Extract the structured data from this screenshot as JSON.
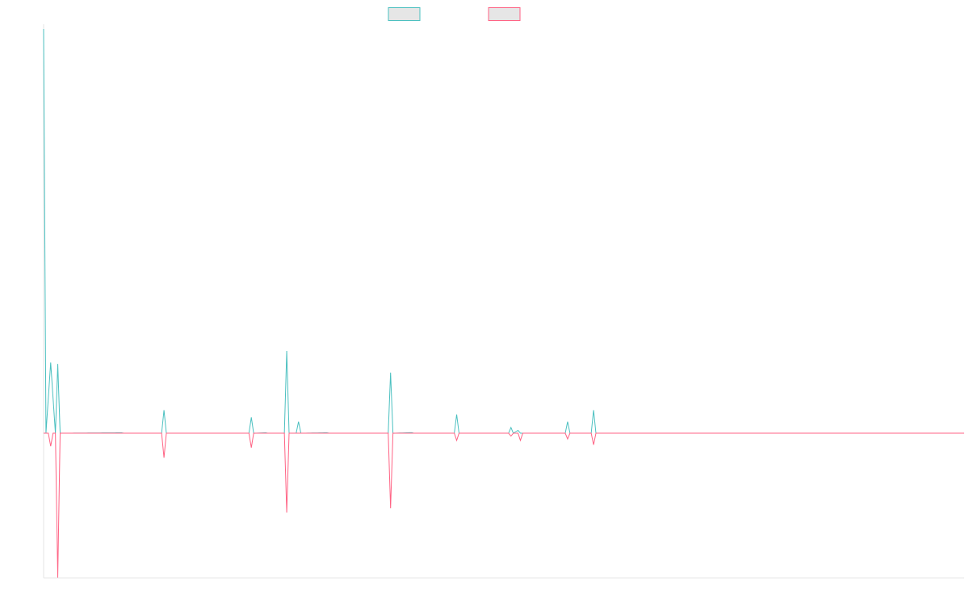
{
  "chart_data": {
    "type": "line",
    "title": "",
    "xlabel": "",
    "ylabel": "",
    "grid": false,
    "legend": "top-center",
    "x": [
      0,
      1,
      2,
      3,
      4,
      5,
      6,
      7,
      8,
      9,
      10,
      11,
      12,
      13,
      14,
      15,
      16,
      17,
      18,
      19,
      20,
      21,
      22,
      23,
      24,
      25,
      26,
      27,
      28,
      29,
      30,
      31,
      32,
      33,
      34,
      35,
      36,
      37,
      38,
      39,
      40,
      41,
      42,
      43,
      44,
      45,
      46,
      47,
      48,
      49,
      50,
      51,
      52,
      53,
      54,
      55,
      56,
      57,
      58,
      59,
      60,
      61,
      62,
      63,
      64,
      65,
      66,
      67,
      68,
      69,
      70,
      71,
      72,
      73,
      74,
      75,
      76,
      77,
      78,
      79,
      80,
      81,
      82,
      83,
      84,
      85,
      86,
      87,
      88,
      89,
      90,
      91,
      92,
      93,
      94,
      95,
      96,
      97,
      98,
      99,
      100,
      101,
      102,
      103,
      104,
      105,
      106,
      107,
      108,
      109,
      110,
      111,
      112,
      113,
      114,
      115,
      116,
      117,
      118,
      119,
      120,
      121,
      122,
      123,
      124,
      125,
      126,
      127,
      128,
      129,
      130,
      131,
      132,
      133,
      134,
      135,
      136,
      137,
      138,
      139,
      140,
      141,
      142,
      143,
      144,
      145,
      146,
      147,
      148,
      149,
      150,
      151,
      152,
      153,
      154,
      155,
      156,
      157,
      158,
      159,
      160,
      161,
      162,
      163,
      164,
      165,
      166,
      167,
      168,
      169,
      170,
      171,
      172,
      173,
      174,
      175,
      176,
      177,
      178,
      179,
      180,
      181,
      182,
      183,
      184,
      185,
      186,
      187,
      188,
      189,
      190,
      191,
      192,
      193,
      194,
      195,
      196,
      197,
      198,
      199,
      200,
      201,
      202,
      203,
      204,
      205,
      206,
      207,
      208,
      209,
      210,
      211,
      212,
      213,
      214,
      215,
      216,
      217,
      218,
      219,
      220,
      221,
      222,
      223,
      224,
      225,
      226,
      227,
      228,
      229,
      230,
      231,
      232,
      233,
      234,
      235,
      236,
      237,
      238,
      239,
      240,
      241,
      242,
      243,
      244,
      245,
      246,
      247,
      248,
      249,
      250,
      251,
      252,
      253,
      254,
      255,
      256,
      257,
      258,
      259,
      260,
      261,
      262,
      263,
      264,
      265,
      266,
      267,
      268,
      269,
      270,
      271,
      272,
      273,
      274,
      275,
      276,
      277,
      278,
      279,
      280,
      281,
      282,
      283,
      284,
      285,
      286,
      287,
      288,
      289,
      290,
      291,
      292,
      293,
      294,
      295,
      296,
      297,
      298,
      299,
      300,
      301,
      302,
      303,
      304,
      305,
      306,
      307,
      308,
      309,
      310,
      311,
      312,
      313,
      314,
      315,
      316,
      317,
      318,
      319,
      320,
      321,
      322,
      323,
      324,
      325,
      326,
      327,
      328,
      329,
      330,
      331,
      332,
      333,
      334,
      335,
      336,
      337,
      338,
      339,
      340,
      341,
      342,
      343,
      344,
      345,
      346,
      347,
      348,
      349,
      350,
      351,
      352,
      353,
      354,
      355,
      356,
      357,
      358,
      359,
      360,
      361,
      362,
      363,
      364,
      365,
      366,
      367,
      368,
      369,
      370,
      371,
      372,
      373,
      374,
      375,
      376,
      377,
      378,
      379,
      380,
      381,
      382,
      383,
      384,
      385,
      386,
      387,
      388,
      389,
      390
    ],
    "ylim": [
      -100,
      280
    ],
    "series": [
      {
        "color": "#4bc0c0",
        "points": [
          [
            0,
            280
          ],
          [
            1,
            0
          ],
          [
            3,
            49
          ],
          [
            5,
            0
          ],
          [
            6,
            48
          ],
          [
            7,
            0
          ],
          [
            33,
            0.3
          ],
          [
            34,
            0
          ],
          [
            50,
            0
          ],
          [
            51,
            16
          ],
          [
            52,
            0
          ],
          [
            87,
            0
          ],
          [
            88,
            11
          ],
          [
            89,
            0
          ],
          [
            94,
            0.3
          ],
          [
            95,
            0
          ],
          [
            102,
            0
          ],
          [
            103,
            57
          ],
          [
            104,
            0
          ],
          [
            107,
            0
          ],
          [
            108,
            8
          ],
          [
            109,
            0
          ],
          [
            120,
            0.3
          ],
          [
            121,
            0
          ],
          [
            146,
            0
          ],
          [
            147,
            42
          ],
          [
            148,
            0
          ],
          [
            156,
            0.4
          ],
          [
            157,
            0
          ],
          [
            174,
            0
          ],
          [
            175,
            13
          ],
          [
            176,
            0
          ],
          [
            197,
            0
          ],
          [
            198,
            4
          ],
          [
            199,
            0
          ],
          [
            201,
            2
          ],
          [
            202,
            0
          ],
          [
            221,
            0
          ],
          [
            222,
            8
          ],
          [
            223,
            0
          ],
          [
            232,
            0
          ],
          [
            233,
            16
          ],
          [
            234,
            0
          ],
          [
            390,
            0
          ]
        ]
      },
      {
        "color": "#ff6384",
        "points": [
          [
            0,
            0
          ],
          [
            2,
            0
          ],
          [
            3,
            -9
          ],
          [
            4,
            0
          ],
          [
            5,
            0
          ],
          [
            6,
            -100
          ],
          [
            7,
            0
          ],
          [
            50,
            0
          ],
          [
            51,
            -17
          ],
          [
            52,
            0
          ],
          [
            87,
            0
          ],
          [
            88,
            -10
          ],
          [
            89,
            0
          ],
          [
            102,
            0
          ],
          [
            103,
            -55
          ],
          [
            104,
            0
          ],
          [
            146,
            0
          ],
          [
            147,
            -52
          ],
          [
            148,
            0
          ],
          [
            174,
            0
          ],
          [
            175,
            -5
          ],
          [
            176,
            0
          ],
          [
            197,
            0
          ],
          [
            198,
            -2
          ],
          [
            199,
            0
          ],
          [
            201,
            0
          ],
          [
            202,
            -5
          ],
          [
            203,
            0
          ],
          [
            221,
            0
          ],
          [
            222,
            -4
          ],
          [
            223,
            0
          ],
          [
            232,
            0
          ],
          [
            233,
            -8
          ],
          [
            234,
            0
          ],
          [
            390,
            0
          ]
        ]
      }
    ]
  }
}
